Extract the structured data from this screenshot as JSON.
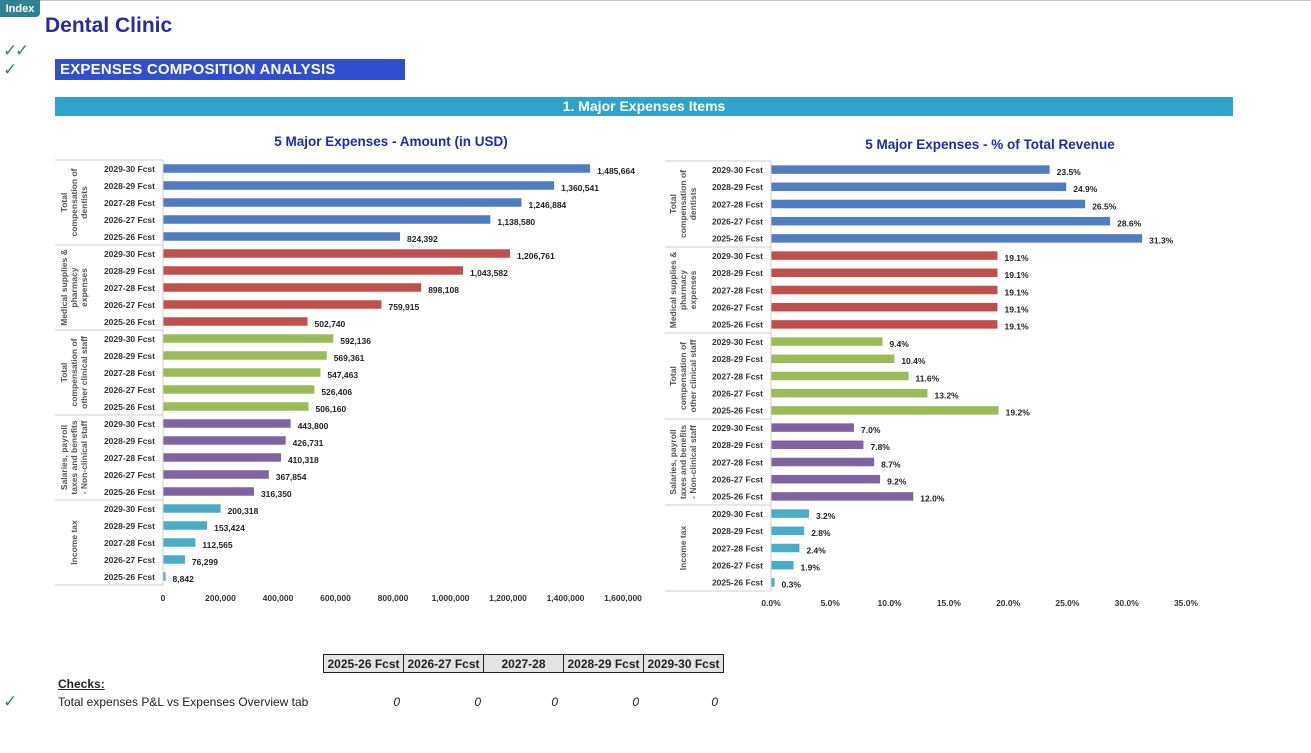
{
  "index_button": "Index",
  "app_title": "Dental Clinic",
  "section_title": "EXPENSES COMPOSITION ANALYSIS",
  "band_title": "1. Major Expenses Items",
  "checks": {
    "label": "Checks:",
    "row_label": "Total expenses P&L vs Expenses Overview tab",
    "headers": [
      "2025-26 Fcst",
      "2026-27 Fcst",
      "2027-28",
      "2028-29 Fcst",
      "2029-30 Fcst"
    ],
    "values": [
      "0",
      "0",
      "0",
      "0",
      "0"
    ]
  },
  "chart_data": [
    {
      "type": "bar",
      "orientation": "horizontal",
      "title": "5 Major Expenses - Amount (in USD)",
      "xlim": [
        0,
        1600000
      ],
      "xticks": [
        "0",
        "200,000",
        "400,000",
        "600,000",
        "800,000",
        "1,000,000",
        "1,200,000",
        "1,400,000",
        "1,600,000"
      ],
      "groups": [
        {
          "name": "Total compensation of dentists",
          "lines": [
            "Total",
            "compensation of",
            "dentists"
          ],
          "color": "#4f7dbf",
          "categories": [
            "2029-30 Fcst",
            "2028-29 Fcst",
            "2027-28 Fcst",
            "2026-27 Fcst",
            "2025-26 Fcst"
          ],
          "values": [
            1485664,
            1360541,
            1246884,
            1138580,
            824392
          ],
          "labels": [
            "1,485,664",
            "1,360,541",
            "1,246,884",
            "1,138,580",
            "824,392"
          ]
        },
        {
          "name": "Medical supplies & pharmacy expenses",
          "lines": [
            "Medical supplies &",
            "pharmacy",
            "expenses"
          ],
          "color": "#c0504d",
          "categories": [
            "2029-30 Fcst",
            "2028-29 Fcst",
            "2027-28 Fcst",
            "2026-27 Fcst",
            "2025-26 Fcst"
          ],
          "values": [
            1206761,
            1043582,
            898108,
            759915,
            502740
          ],
          "labels": [
            "1,206,761",
            "1,043,582",
            "898,108",
            "759,915",
            "502,740"
          ]
        },
        {
          "name": "Total compensation of other clinical staff",
          "lines": [
            "Total",
            "compensation of",
            "other clinical staff"
          ],
          "color": "#9bbb59",
          "categories": [
            "2029-30 Fcst",
            "2028-29 Fcst",
            "2027-28 Fcst",
            "2026-27 Fcst",
            "2025-26 Fcst"
          ],
          "values": [
            592136,
            569361,
            547463,
            526406,
            506160
          ],
          "labels": [
            "592,136",
            "569,361",
            "547,463",
            "526,406",
            "506,160"
          ]
        },
        {
          "name": "Salaries, payroll taxes and benefits - Non-clinical staff",
          "lines": [
            "Salaries, payroll",
            "taxes and benefits",
            "- Non-clinical staff"
          ],
          "color": "#8064a2",
          "categories": [
            "2029-30 Fcst",
            "2028-29 Fcst",
            "2027-28 Fcst",
            "2026-27 Fcst",
            "2025-26 Fcst"
          ],
          "values": [
            443800,
            426731,
            410318,
            367854,
            316350
          ],
          "labels": [
            "443,800",
            "426,731",
            "410,318",
            "367,854",
            "316,350"
          ]
        },
        {
          "name": "Income tax",
          "lines": [
            "Income tax"
          ],
          "color": "#4bacc6",
          "categories": [
            "2029-30 Fcst",
            "2028-29 Fcst",
            "2027-28 Fcst",
            "2026-27 Fcst",
            "2025-26 Fcst"
          ],
          "values": [
            200318,
            153424,
            112565,
            76299,
            8842
          ],
          "labels": [
            "200,318",
            "153,424",
            "112,565",
            "76,299",
            "8,842"
          ]
        }
      ]
    },
    {
      "type": "bar",
      "orientation": "horizontal",
      "title": "5 Major Expenses - % of Total Revenue",
      "xlim": [
        0,
        35
      ],
      "xticks": [
        "0.0%",
        "5.0%",
        "10.0%",
        "15.0%",
        "20.0%",
        "25.0%",
        "30.0%",
        "35.0%"
      ],
      "groups": [
        {
          "name": "Total compensation of dentists",
          "lines": [
            "Total",
            "compensation of",
            "dentists"
          ],
          "color": "#4f7dbf",
          "categories": [
            "2029-30 Fcst",
            "2028-29 Fcst",
            "2027-28 Fcst",
            "2026-27 Fcst",
            "2025-26 Fcst"
          ],
          "values": [
            23.5,
            24.9,
            26.5,
            28.6,
            31.3
          ],
          "labels": [
            "23.5%",
            "24.9%",
            "26.5%",
            "28.6%",
            "31.3%"
          ]
        },
        {
          "name": "Medical supplies & pharmacy expenses",
          "lines": [
            "Medical supplies &",
            "pharmacy",
            "expenses"
          ],
          "color": "#c0504d",
          "categories": [
            "2029-30 Fcst",
            "2028-29 Fcst",
            "2027-28 Fcst",
            "2026-27 Fcst",
            "2025-26 Fcst"
          ],
          "values": [
            19.1,
            19.1,
            19.1,
            19.1,
            19.1
          ],
          "labels": [
            "19.1%",
            "19.1%",
            "19.1%",
            "19.1%",
            "19.1%"
          ]
        },
        {
          "name": "Total compensation of other clinical staff",
          "lines": [
            "Total",
            "compensation of",
            "other clinical staff"
          ],
          "color": "#9bbb59",
          "categories": [
            "2029-30 Fcst",
            "2028-29 Fcst",
            "2027-28 Fcst",
            "2026-27 Fcst",
            "2025-26 Fcst"
          ],
          "values": [
            9.4,
            10.4,
            11.6,
            13.2,
            19.2
          ],
          "labels": [
            "9.4%",
            "10.4%",
            "11.6%",
            "13.2%",
            "19.2%"
          ]
        },
        {
          "name": "Salaries, payroll taxes and benefits - Non-clinical staff",
          "lines": [
            "Salaries, payroll",
            "taxes and benefits",
            "- Non-clinical staff"
          ],
          "color": "#8064a2",
          "categories": [
            "2029-30 Fcst",
            "2028-29 Fcst",
            "2027-28 Fcst",
            "2026-27 Fcst",
            "2025-26 Fcst"
          ],
          "values": [
            7.0,
            7.8,
            8.7,
            9.2,
            12.0
          ],
          "labels": [
            "7.0%",
            "7.8%",
            "8.7%",
            "9.2%",
            "12.0%"
          ]
        },
        {
          "name": "Income tax",
          "lines": [
            "Income tax"
          ],
          "color": "#4bacc6",
          "categories": [
            "2029-30 Fcst",
            "2028-29 Fcst",
            "2027-28 Fcst",
            "2026-27 Fcst",
            "2025-26 Fcst"
          ],
          "values": [
            3.2,
            2.8,
            2.4,
            1.9,
            0.3
          ],
          "labels": [
            "3.2%",
            "2.8%",
            "2.4%",
            "1.9%",
            "0.3%"
          ]
        }
      ]
    }
  ]
}
